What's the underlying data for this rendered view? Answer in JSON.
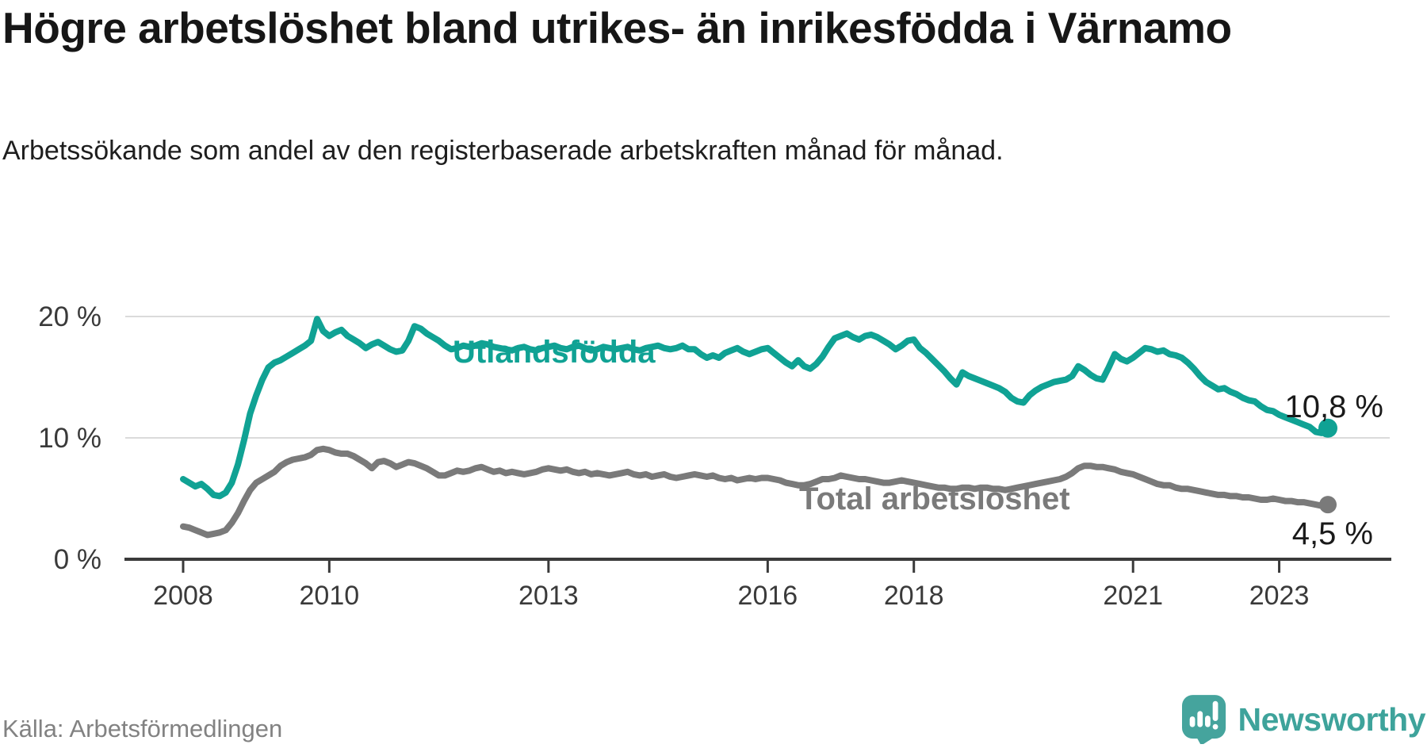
{
  "title": "Högre arbetslöshet bland utrikes- än inrikesfödda i Värnamo",
  "subtitle": "Arbetssökande som andel av den registerbaserade arbetskraften månad för månad.",
  "source": "Källa: Arbetsförmedlingen",
  "brand": {
    "name": "Newsworthy",
    "icon": "bar-chart-speech-bubble-icon",
    "color": "#40a49c"
  },
  "colors": {
    "accent_teal": "#10a294",
    "series_gray": "#7a7a7a",
    "axis": "#3a3a3a",
    "grid": "#dbdbdb",
    "value_label": "#1a1a1a",
    "source_text": "#828282"
  },
  "chart_data": {
    "type": "line",
    "title": "Högre arbetslöshet bland utrikes- än inrikesfödda i Värnamo",
    "unit": "%",
    "frequency": "monthly",
    "x_start": "2008-01",
    "x_end": "2023-09",
    "ylim": [
      0,
      21.6
    ],
    "grid": "horizontal",
    "legend_position": "inline-labels",
    "y_ticks": [
      {
        "value": 0,
        "label": "0 %"
      },
      {
        "value": 10,
        "label": "10 %"
      },
      {
        "value": 20,
        "label": "20 %"
      }
    ],
    "x_ticks": [
      {
        "month_index": 0,
        "label": "2008"
      },
      {
        "month_index": 24,
        "label": "2010"
      },
      {
        "month_index": 60,
        "label": "2013"
      },
      {
        "month_index": 96,
        "label": "2016"
      },
      {
        "month_index": 120,
        "label": "2018"
      },
      {
        "month_index": 156,
        "label": "2021"
      },
      {
        "month_index": 180,
        "label": "2023"
      }
    ],
    "series": [
      {
        "name": "Utlandsfödda",
        "color": "#10a294",
        "end_label": "10,8 %",
        "last_value": 10.8,
        "values": [
          6.6,
          6.3,
          6.0,
          6.2,
          5.8,
          5.3,
          5.2,
          5.5,
          6.3,
          7.8,
          9.8,
          12.0,
          13.5,
          14.8,
          15.8,
          16.2,
          16.4,
          16.7,
          17.0,
          17.3,
          17.6,
          18.0,
          19.8,
          18.8,
          18.4,
          18.7,
          18.9,
          18.4,
          18.1,
          17.8,
          17.4,
          17.7,
          17.9,
          17.6,
          17.3,
          17.1,
          17.2,
          18.0,
          19.2,
          19.0,
          18.6,
          18.3,
          18.0,
          17.6,
          17.3,
          17.4,
          17.6,
          17.5,
          17.6,
          17.8,
          17.7,
          17.5,
          17.4,
          17.3,
          17.2,
          17.4,
          17.5,
          17.3,
          17.2,
          17.4,
          17.5,
          17.6,
          17.4,
          17.3,
          17.5,
          17.6,
          17.4,
          17.2,
          17.3,
          17.5,
          17.4,
          17.3,
          17.4,
          17.5,
          17.3,
          17.2,
          17.4,
          17.5,
          17.6,
          17.4,
          17.3,
          17.4,
          17.6,
          17.3,
          17.3,
          16.9,
          16.6,
          16.8,
          16.6,
          17.0,
          17.2,
          17.4,
          17.1,
          16.9,
          17.1,
          17.3,
          17.4,
          17.0,
          16.6,
          16.2,
          15.9,
          16.4,
          15.9,
          15.7,
          16.1,
          16.7,
          17.5,
          18.2,
          18.4,
          18.6,
          18.3,
          18.1,
          18.4,
          18.5,
          18.3,
          18.0,
          17.7,
          17.3,
          17.6,
          18.0,
          18.1,
          17.4,
          17.0,
          16.5,
          16.0,
          15.5,
          14.9,
          14.4,
          15.4,
          15.1,
          14.9,
          14.7,
          14.5,
          14.3,
          14.1,
          13.8,
          13.3,
          13.0,
          12.9,
          13.5,
          13.9,
          14.2,
          14.4,
          14.6,
          14.7,
          14.8,
          15.1,
          15.9,
          15.6,
          15.2,
          14.9,
          14.8,
          15.8,
          16.9,
          16.5,
          16.3,
          16.6,
          17.0,
          17.4,
          17.3,
          17.1,
          17.2,
          16.9,
          16.8,
          16.6,
          16.2,
          15.7,
          15.1,
          14.6,
          14.3,
          14.0,
          14.1,
          13.8,
          13.6,
          13.3,
          13.1,
          13.0,
          12.6,
          12.3,
          12.2,
          11.9,
          11.7,
          11.5,
          11.3,
          11.1,
          10.9,
          10.5,
          10.4,
          10.8
        ]
      },
      {
        "name": "Total arbetslöshet",
        "color": "#7a7a7a",
        "end_label": "4,5 %",
        "last_value": 4.5,
        "values": [
          2.7,
          2.6,
          2.4,
          2.2,
          2.0,
          2.1,
          2.2,
          2.4,
          3.0,
          3.8,
          4.8,
          5.7,
          6.3,
          6.6,
          6.9,
          7.2,
          7.7,
          8.0,
          8.2,
          8.3,
          8.4,
          8.6,
          9.0,
          9.1,
          9.0,
          8.8,
          8.7,
          8.7,
          8.5,
          8.2,
          7.9,
          7.5,
          8.0,
          8.1,
          7.9,
          7.6,
          7.8,
          8.0,
          7.9,
          7.7,
          7.5,
          7.2,
          6.9,
          6.9,
          7.1,
          7.3,
          7.2,
          7.3,
          7.5,
          7.6,
          7.4,
          7.2,
          7.3,
          7.1,
          7.2,
          7.1,
          7.0,
          7.1,
          7.2,
          7.4,
          7.5,
          7.4,
          7.3,
          7.4,
          7.2,
          7.1,
          7.2,
          7.0,
          7.1,
          7.0,
          6.9,
          7.0,
          7.1,
          7.2,
          7.0,
          6.9,
          7.0,
          6.8,
          6.9,
          7.0,
          6.8,
          6.7,
          6.8,
          6.9,
          7.0,
          6.9,
          6.8,
          6.9,
          6.7,
          6.6,
          6.7,
          6.5,
          6.6,
          6.7,
          6.6,
          6.7,
          6.7,
          6.6,
          6.5,
          6.3,
          6.2,
          6.1,
          6.1,
          6.2,
          6.4,
          6.6,
          6.6,
          6.7,
          6.9,
          6.8,
          6.7,
          6.6,
          6.6,
          6.5,
          6.4,
          6.3,
          6.3,
          6.4,
          6.5,
          6.4,
          6.3,
          6.2,
          6.1,
          6.0,
          5.9,
          5.9,
          5.8,
          5.8,
          5.9,
          5.9,
          5.8,
          5.9,
          5.9,
          5.8,
          5.8,
          5.7,
          5.8,
          5.9,
          6.0,
          6.1,
          6.2,
          6.3,
          6.4,
          6.5,
          6.6,
          6.8,
          7.1,
          7.5,
          7.7,
          7.7,
          7.6,
          7.6,
          7.5,
          7.4,
          7.2,
          7.1,
          7.0,
          6.8,
          6.6,
          6.4,
          6.2,
          6.1,
          6.1,
          5.9,
          5.8,
          5.8,
          5.7,
          5.6,
          5.5,
          5.4,
          5.3,
          5.3,
          5.2,
          5.2,
          5.1,
          5.1,
          5.0,
          4.9,
          4.9,
          5.0,
          4.9,
          4.8,
          4.8,
          4.7,
          4.7,
          4.6,
          4.5,
          4.4,
          4.5
        ]
      }
    ]
  }
}
